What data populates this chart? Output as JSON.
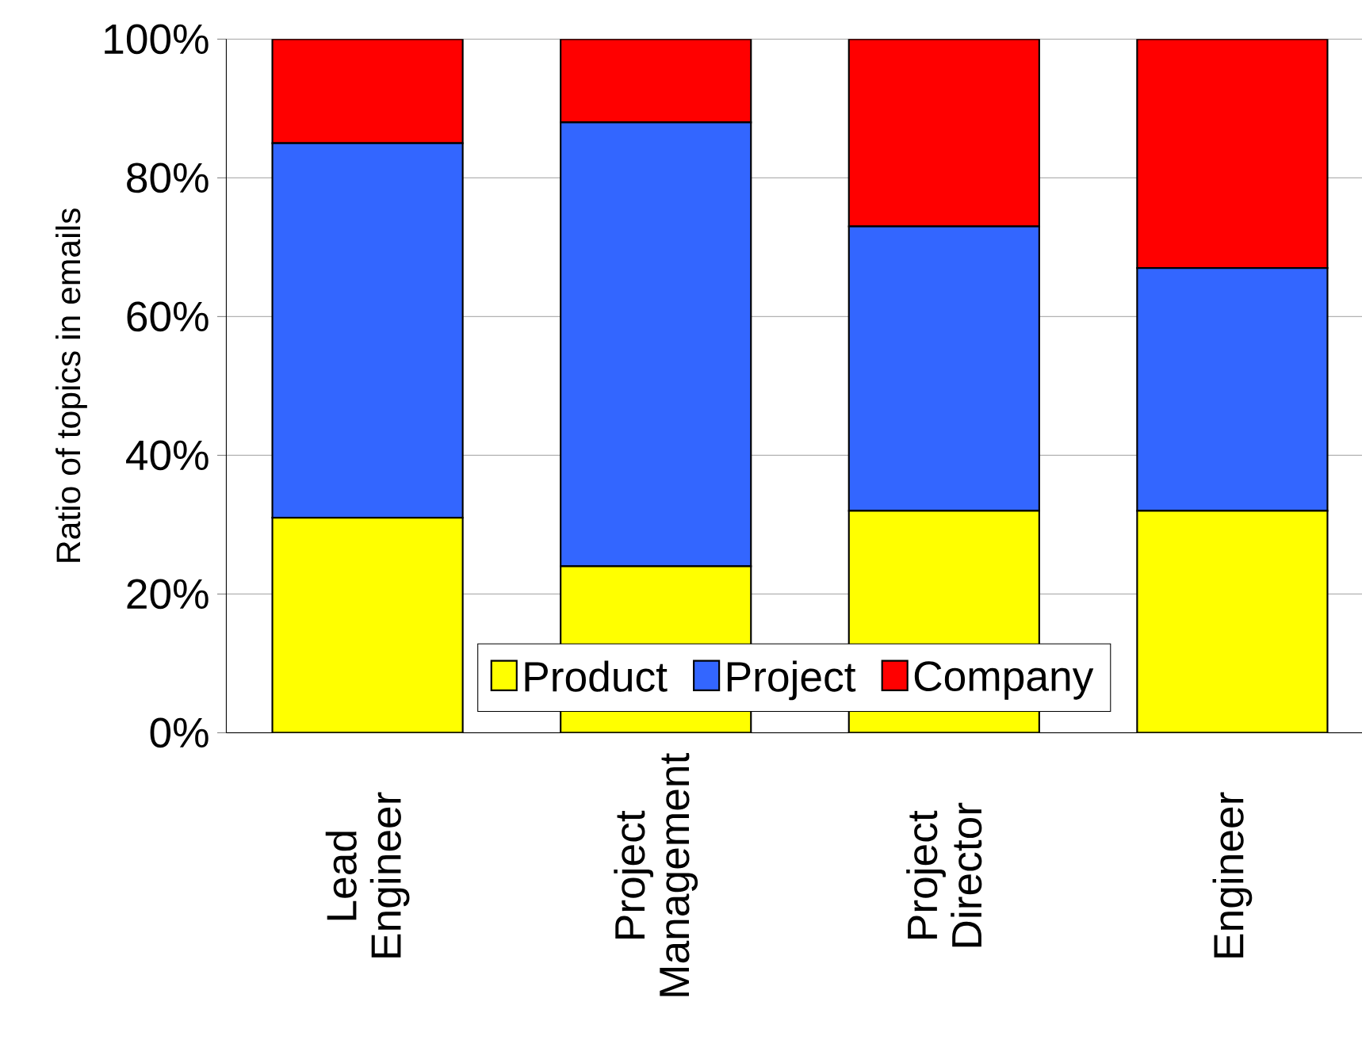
{
  "chart_data": {
    "type": "bar",
    "stacked": true,
    "ylabel": "Ratio of topics in emails",
    "categories": [
      "Lead Engineer",
      "Project Management",
      "Project Director",
      "Engineer"
    ],
    "series": [
      {
        "name": "Product",
        "color": "#ffff00",
        "values": [
          31,
          24,
          32,
          32
        ]
      },
      {
        "name": "Project",
        "color": "#3366ff",
        "values": [
          54,
          64,
          41,
          35
        ]
      },
      {
        "name": "Company",
        "color": "#ff0000",
        "values": [
          15,
          12,
          27,
          33
        ]
      }
    ],
    "ylim": [
      0,
      100
    ],
    "yticks": [
      {
        "value": 0,
        "label": "0%"
      },
      {
        "value": 20,
        "label": "20%"
      },
      {
        "value": 40,
        "label": "40%"
      },
      {
        "value": 60,
        "label": "60%"
      },
      {
        "value": 80,
        "label": "80%"
      },
      {
        "value": 100,
        "label": "100%"
      }
    ],
    "grid": "y",
    "legend": "bottom"
  }
}
